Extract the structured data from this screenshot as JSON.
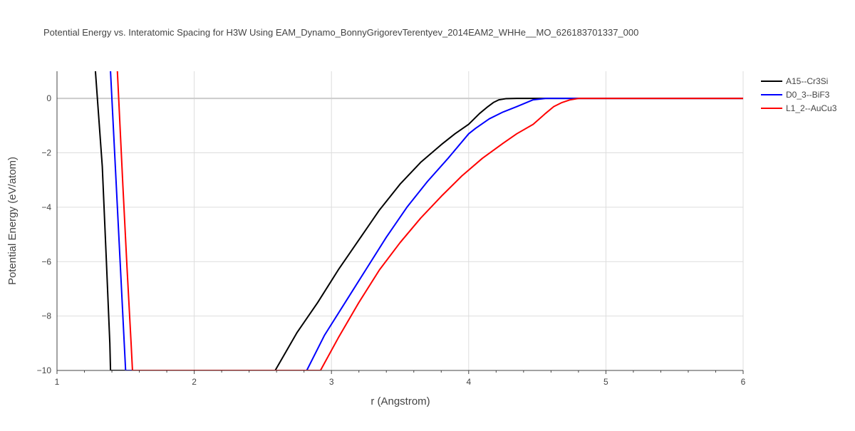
{
  "chart_data": {
    "type": "line",
    "title": "Potential Energy vs. Interatomic Spacing for H3W Using EAM_Dynamo_BonnyGrigorevTerentyev_2014EAM2_WHHe__MO_626183701337_000",
    "xlabel": "r (Angstrom)",
    "ylabel": "Potential Energy (eV/atom)",
    "xlim": [
      1,
      6
    ],
    "ylim": [
      -10,
      1
    ],
    "xticks": [
      1,
      2,
      3,
      4,
      5,
      6
    ],
    "xtick_labels": [
      "1",
      "2",
      "3",
      "4",
      "5",
      "6"
    ],
    "yticks": [
      0,
      -2,
      -4,
      -6,
      -8,
      -10
    ],
    "ytick_labels": [
      "0",
      "−2",
      "−4",
      "−6",
      "−8",
      "−10"
    ],
    "grid": true,
    "legend_position": "top-right",
    "series": [
      {
        "name": "A15--Cr3Si",
        "color": "#000000",
        "x": [
          1.28,
          1.33,
          1.36,
          1.385,
          1.39,
          2.59,
          2.75,
          2.9,
          3.05,
          3.2,
          3.35,
          3.5,
          3.65,
          3.8,
          3.9,
          4.0,
          4.08,
          4.14,
          4.18,
          4.22,
          4.27,
          4.35,
          4.5,
          4.8,
          5.2,
          6.0
        ],
        "y": [
          1.0,
          -2.5,
          -6.0,
          -9.0,
          -10.0,
          -10.0,
          -8.6,
          -7.5,
          -6.3,
          -5.2,
          -4.1,
          -3.15,
          -2.35,
          -1.7,
          -1.3,
          -0.95,
          -0.55,
          -0.3,
          -0.15,
          -0.05,
          -0.01,
          0.0,
          0.0,
          0.0,
          0.0,
          0.0
        ]
      },
      {
        "name": "D0_3--BiF3",
        "color": "#0000ff",
        "x": [
          1.39,
          1.43,
          1.46,
          1.49,
          1.5,
          2.82,
          2.95,
          3.1,
          3.25,
          3.4,
          3.55,
          3.7,
          3.85,
          4.0,
          4.05,
          4.15,
          4.25,
          4.35,
          4.47,
          4.56,
          4.62,
          4.68,
          4.74,
          4.78,
          4.85,
          5.2,
          6.0
        ],
        "y": [
          1.0,
          -3.0,
          -6.0,
          -9.0,
          -10.0,
          -10.0,
          -8.7,
          -7.5,
          -6.3,
          -5.1,
          -4.0,
          -3.05,
          -2.2,
          -1.3,
          -1.1,
          -0.75,
          -0.5,
          -0.3,
          -0.05,
          0.0,
          0.0,
          0.0,
          0.0,
          0.0,
          0.0,
          0.0,
          0.0
        ]
      },
      {
        "name": "L1_2--AuCu3",
        "color": "#ff0000",
        "x": [
          1.44,
          1.48,
          1.51,
          1.54,
          1.55,
          2.92,
          3.05,
          3.2,
          3.35,
          3.5,
          3.65,
          3.8,
          3.95,
          4.1,
          4.25,
          4.35,
          4.47,
          4.56,
          4.62,
          4.68,
          4.74,
          4.8,
          4.9,
          5.2,
          6.0
        ],
        "y": [
          1.0,
          -3.2,
          -6.2,
          -9.0,
          -10.0,
          -10.0,
          -8.8,
          -7.5,
          -6.3,
          -5.3,
          -4.4,
          -3.6,
          -2.85,
          -2.2,
          -1.65,
          -1.3,
          -0.95,
          -0.55,
          -0.3,
          -0.15,
          -0.05,
          0.0,
          0.0,
          0.0,
          0.0
        ]
      }
    ]
  }
}
